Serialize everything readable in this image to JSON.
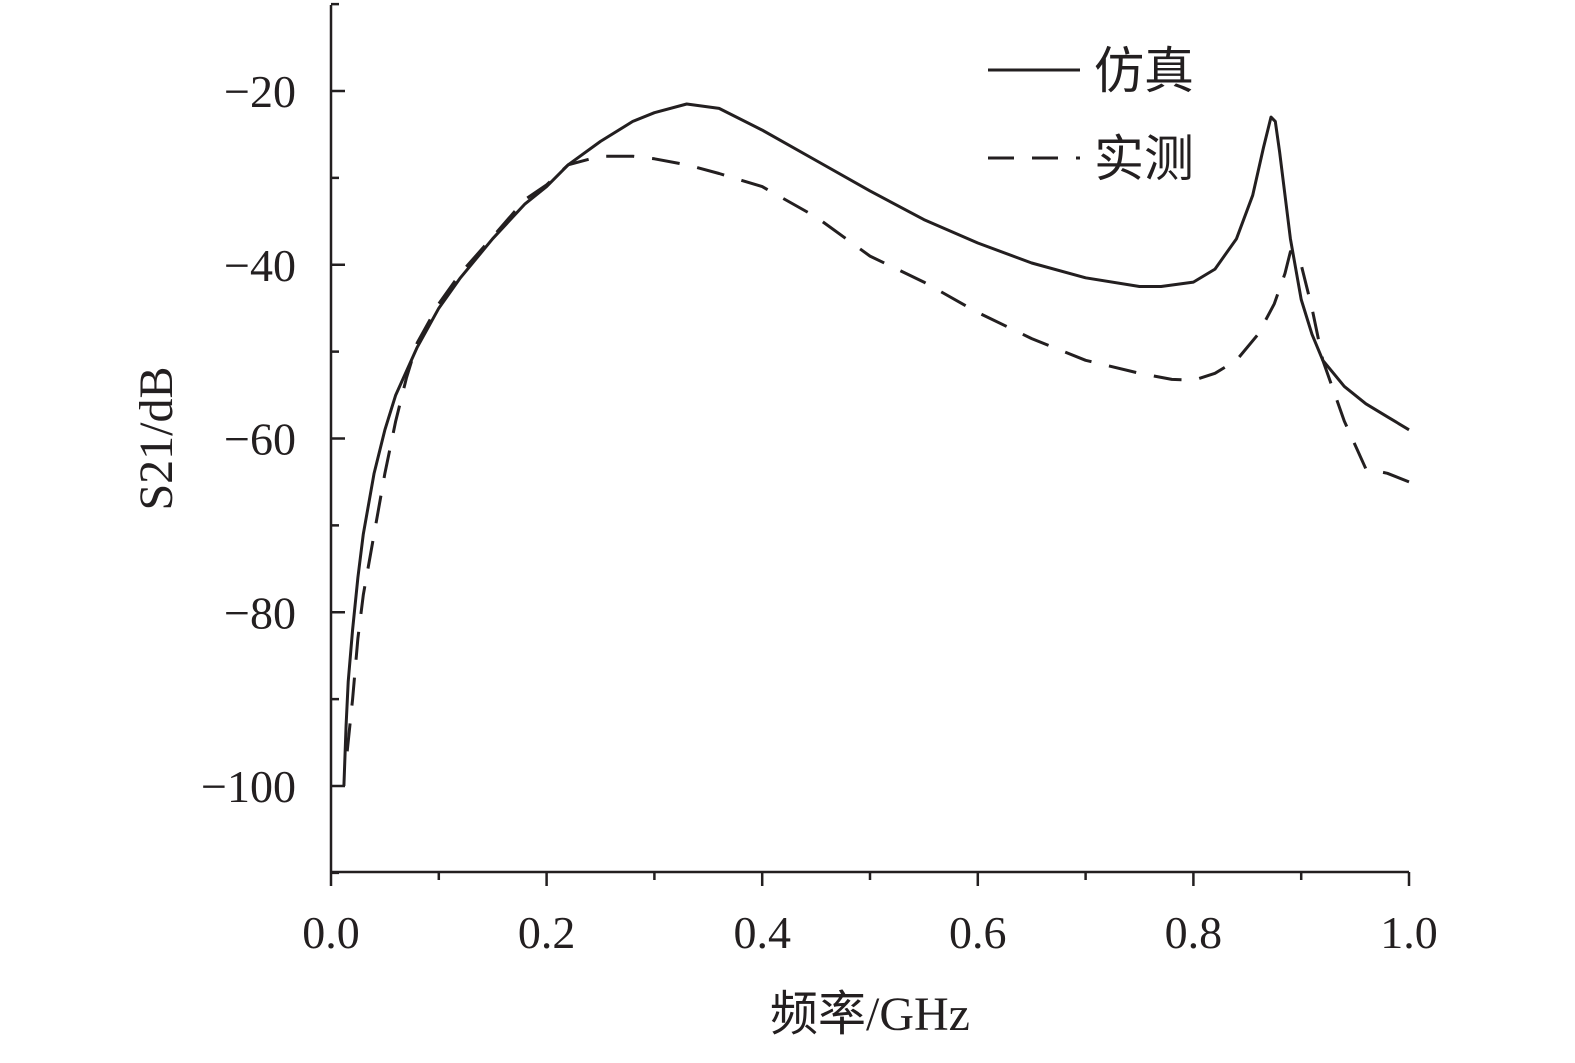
{
  "chart_data": {
    "type": "line",
    "xlabel": "频率/GHz",
    "ylabel": "S21/dB",
    "xlim": [
      0.0,
      1.0
    ],
    "ylim": [
      -110,
      -10
    ],
    "x_ticks": [
      0.0,
      0.2,
      0.4,
      0.6,
      0.8,
      1.0
    ],
    "x_tick_labels": [
      "0.0",
      "0.2",
      "0.4",
      "0.6",
      "0.8",
      "1.0"
    ],
    "x_minor_step": 0.1,
    "y_ticks": [
      -100,
      -80,
      -60,
      -40,
      -20
    ],
    "y_tick_labels": [
      "−100",
      "−80",
      "−60",
      "−40",
      "−20"
    ],
    "y_minor_step": 10,
    "grid": false,
    "legend": "top-right",
    "series": [
      {
        "name": "仿真",
        "style": "solid",
        "color": "#231f20",
        "x": [
          0.012,
          0.014,
          0.016,
          0.02,
          0.025,
          0.03,
          0.04,
          0.05,
          0.06,
          0.08,
          0.1,
          0.12,
          0.15,
          0.18,
          0.2,
          0.22,
          0.25,
          0.28,
          0.3,
          0.33,
          0.36,
          0.4,
          0.45,
          0.5,
          0.55,
          0.6,
          0.65,
          0.7,
          0.75,
          0.77,
          0.8,
          0.82,
          0.84,
          0.855,
          0.865,
          0.872,
          0.876,
          0.88,
          0.89,
          0.9,
          0.91,
          0.92,
          0.94,
          0.96,
          0.98,
          1.0
        ],
        "y": [
          -100,
          -93,
          -88,
          -82,
          -76,
          -71,
          -64,
          -59,
          -55,
          -49.5,
          -45,
          -41.5,
          -37,
          -33,
          -31,
          -28.5,
          -25.8,
          -23.5,
          -22.5,
          -21.5,
          -22,
          -24.5,
          -28,
          -31.5,
          -34.8,
          -37.5,
          -39.8,
          -41.5,
          -42.5,
          -42.5,
          -42,
          -40.5,
          -37,
          -32,
          -26.5,
          -23,
          -23.5,
          -27,
          -37,
          -44,
          -48,
          -51,
          -54,
          -56,
          -57.5,
          -59
        ]
      },
      {
        "name": "实测",
        "style": "dashed",
        "color": "#231f20",
        "x": [
          0.015,
          0.02,
          0.025,
          0.03,
          0.04,
          0.05,
          0.06,
          0.07,
          0.08,
          0.1,
          0.12,
          0.15,
          0.18,
          0.2,
          0.22,
          0.25,
          0.28,
          0.3,
          0.33,
          0.36,
          0.4,
          0.45,
          0.5,
          0.55,
          0.6,
          0.65,
          0.7,
          0.75,
          0.78,
          0.8,
          0.82,
          0.84,
          0.86,
          0.875,
          0.885,
          0.89,
          0.9,
          0.91,
          0.92,
          0.94,
          0.96,
          0.98,
          1.0
        ],
        "y": [
          -96,
          -90,
          -83,
          -78,
          -71,
          -64,
          -58,
          -53,
          -49,
          -44.5,
          -41,
          -36.8,
          -32.5,
          -30.8,
          -28.5,
          -27.5,
          -27.5,
          -27.8,
          -28.5,
          -29.5,
          -31,
          -34.5,
          -39,
          -42,
          -45.5,
          -48.5,
          -51,
          -52.5,
          -53.2,
          -53.3,
          -52.5,
          -51,
          -48,
          -44.5,
          -41,
          -38.5,
          -40,
          -45,
          -51,
          -58,
          -63.5,
          -64,
          -65
        ]
      }
    ]
  }
}
